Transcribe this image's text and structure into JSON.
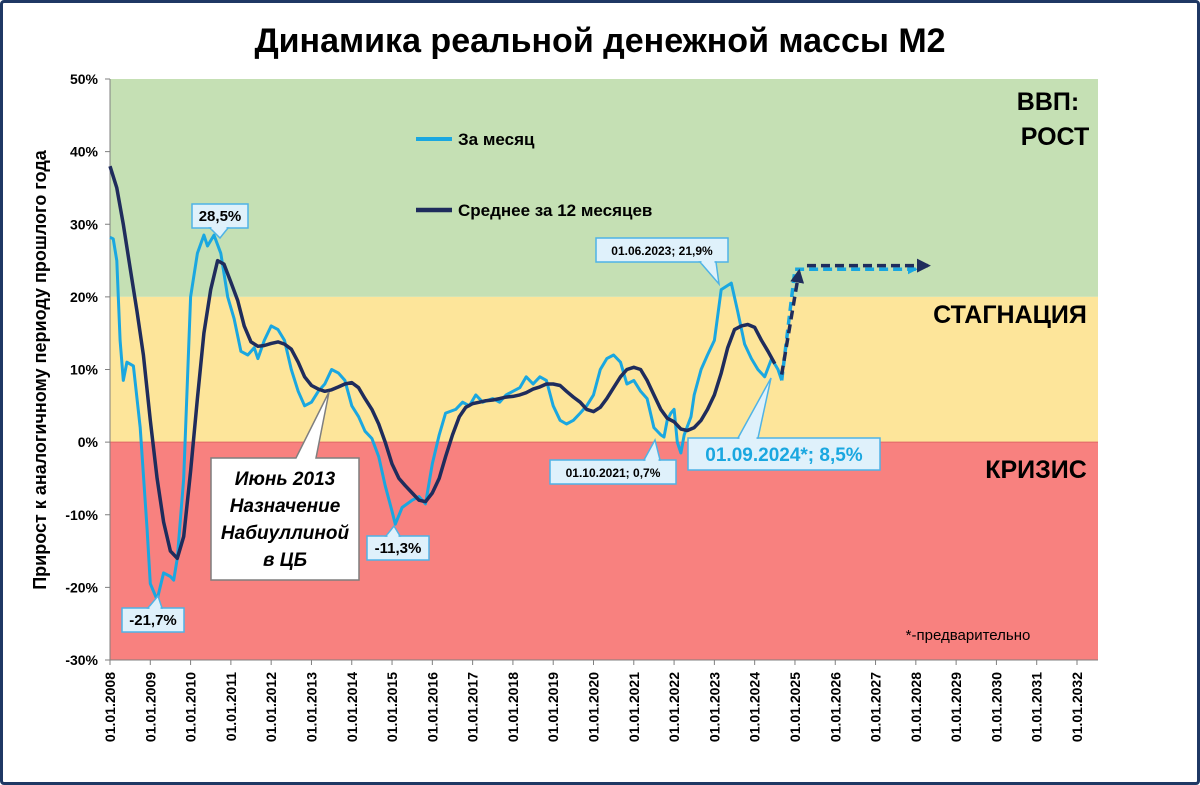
{
  "chart_data": {
    "type": "line",
    "title": "Динамика реальной денежной массы М2",
    "ylabel": "Прирост к аналогичному периоду прошлого года",
    "ylim": [
      -30,
      50
    ],
    "yticks": [
      "50%",
      "40%",
      "30%",
      "20%",
      "10%",
      "0%",
      "-10%",
      "-20%",
      "-30%"
    ],
    "x_categories": [
      "01.01.2008",
      "01.01.2009",
      "01.01.2010",
      "01.01.2011",
      "01.01.2012",
      "01.01.2013",
      "01.01.2014",
      "01.01.2015",
      "01.01.2016",
      "01.01.2017",
      "01.01.2018",
      "01.01.2019",
      "01.01.2020",
      "01.01.2021",
      "01.01.2022",
      "01.01.2023",
      "01.01.2024",
      "01.01.2025",
      "01.01.2026",
      "01.01.2027",
      "01.01.2028",
      "01.01.2029",
      "01.01.2030",
      "01.01.2031",
      "01.01.2032"
    ],
    "zones": [
      {
        "label_lines": [
          "ВВП:",
          "РОСТ"
        ],
        "from": 20,
        "to": 50,
        "color": "#c5e0b4"
      },
      {
        "label_lines": [
          "СТАГНАЦИЯ"
        ],
        "from": 0,
        "to": 20,
        "color": "#fde59a"
      },
      {
        "label_lines": [
          "КРИЗИС"
        ],
        "from": -30,
        "to": 0,
        "color": "#f8817f"
      }
    ],
    "legend_placement": "top-center",
    "series": [
      {
        "name": "За месяц",
        "color": "#1aa7e0",
        "points": [
          [
            2008.0,
            28.2
          ],
          [
            2008.08,
            28.0
          ],
          [
            2008.17,
            25.0
          ],
          [
            2008.25,
            14.0
          ],
          [
            2008.33,
            8.5
          ],
          [
            2008.42,
            11.0
          ],
          [
            2008.58,
            10.5
          ],
          [
            2008.75,
            2.0
          ],
          [
            2008.92,
            -12.0
          ],
          [
            2009.0,
            -19.5
          ],
          [
            2009.17,
            -21.7
          ],
          [
            2009.33,
            -18.0
          ],
          [
            2009.5,
            -18.5
          ],
          [
            2009.58,
            -19.0
          ],
          [
            2009.67,
            -16.0
          ],
          [
            2009.83,
            -5.0
          ],
          [
            2010.0,
            20.0
          ],
          [
            2010.17,
            26.0
          ],
          [
            2010.33,
            28.5
          ],
          [
            2010.42,
            27.0
          ],
          [
            2010.58,
            28.5
          ],
          [
            2010.75,
            26.0
          ],
          [
            2010.92,
            20.0
          ],
          [
            2011.08,
            17.0
          ],
          [
            2011.25,
            12.5
          ],
          [
            2011.42,
            12.0
          ],
          [
            2011.58,
            13.0
          ],
          [
            2011.67,
            11.5
          ],
          [
            2011.83,
            14.0
          ],
          [
            2012.0,
            16.0
          ],
          [
            2012.17,
            15.5
          ],
          [
            2012.33,
            14.0
          ],
          [
            2012.5,
            10.0
          ],
          [
            2012.67,
            7.0
          ],
          [
            2012.83,
            5.0
          ],
          [
            2013.0,
            5.5
          ],
          [
            2013.17,
            7.0
          ],
          [
            2013.33,
            8.0
          ],
          [
            2013.5,
            10.0
          ],
          [
            2013.67,
            9.5
          ],
          [
            2013.83,
            8.5
          ],
          [
            2014.0,
            5.0
          ],
          [
            2014.17,
            3.5
          ],
          [
            2014.33,
            1.5
          ],
          [
            2014.5,
            0.5
          ],
          [
            2014.67,
            -2.0
          ],
          [
            2014.83,
            -6.0
          ],
          [
            2015.0,
            -9.5
          ],
          [
            2015.08,
            -11.3
          ],
          [
            2015.25,
            -9.0
          ],
          [
            2015.5,
            -8.0
          ],
          [
            2015.67,
            -7.5
          ],
          [
            2015.83,
            -8.5
          ],
          [
            2016.0,
            -3.0
          ],
          [
            2016.17,
            1.0
          ],
          [
            2016.33,
            4.0
          ],
          [
            2016.58,
            4.5
          ],
          [
            2016.75,
            5.5
          ],
          [
            2016.92,
            5.0
          ],
          [
            2017.08,
            6.5
          ],
          [
            2017.25,
            5.5
          ],
          [
            2017.5,
            6.0
          ],
          [
            2017.67,
            5.5
          ],
          [
            2017.83,
            6.5
          ],
          [
            2018.0,
            7.0
          ],
          [
            2018.17,
            7.5
          ],
          [
            2018.33,
            9.0
          ],
          [
            2018.5,
            8.0
          ],
          [
            2018.67,
            9.0
          ],
          [
            2018.83,
            8.5
          ],
          [
            2019.0,
            5.0
          ],
          [
            2019.17,
            3.0
          ],
          [
            2019.33,
            2.5
          ],
          [
            2019.5,
            3.0
          ],
          [
            2019.67,
            4.0
          ],
          [
            2019.83,
            5.0
          ],
          [
            2020.0,
            6.5
          ],
          [
            2020.17,
            10.0
          ],
          [
            2020.33,
            11.5
          ],
          [
            2020.5,
            12.0
          ],
          [
            2020.67,
            11.0
          ],
          [
            2020.83,
            8.0
          ],
          [
            2021.0,
            8.5
          ],
          [
            2021.17,
            7.0
          ],
          [
            2021.33,
            6.0
          ],
          [
            2021.5,
            2.0
          ],
          [
            2021.67,
            1.0
          ],
          [
            2021.75,
            0.7
          ],
          [
            2021.83,
            3.0
          ],
          [
            2021.92,
            4.0
          ],
          [
            2022.0,
            4.5
          ],
          [
            2022.08,
            0.0
          ],
          [
            2022.17,
            -1.5
          ],
          [
            2022.25,
            1.0
          ],
          [
            2022.42,
            3.5
          ],
          [
            2022.5,
            6.5
          ],
          [
            2022.67,
            10.0
          ],
          [
            2022.83,
            12.0
          ],
          [
            2023.0,
            14.0
          ],
          [
            2023.17,
            21.0
          ],
          [
            2023.42,
            21.9
          ],
          [
            2023.58,
            18.0
          ],
          [
            2023.75,
            13.5
          ],
          [
            2023.92,
            11.5
          ],
          [
            2024.08,
            10.0
          ],
          [
            2024.25,
            9.0
          ],
          [
            2024.42,
            11.5
          ],
          [
            2024.58,
            10.0
          ],
          [
            2024.67,
            8.5
          ]
        ]
      },
      {
        "name": "Среднее за 12 месяцев",
        "color": "#1f2c5c",
        "points": [
          [
            2008.0,
            38.0
          ],
          [
            2008.17,
            35.0
          ],
          [
            2008.33,
            30.0
          ],
          [
            2008.5,
            24.0
          ],
          [
            2008.67,
            18.0
          ],
          [
            2008.83,
            12.0
          ],
          [
            2009.0,
            3.0
          ],
          [
            2009.17,
            -5.0
          ],
          [
            2009.33,
            -11.0
          ],
          [
            2009.5,
            -15.0
          ],
          [
            2009.67,
            -16.0
          ],
          [
            2009.83,
            -13.0
          ],
          [
            2010.0,
            -4.0
          ],
          [
            2010.17,
            6.0
          ],
          [
            2010.33,
            15.0
          ],
          [
            2010.5,
            21.0
          ],
          [
            2010.67,
            25.0
          ],
          [
            2010.83,
            24.5
          ],
          [
            2011.0,
            22.0
          ],
          [
            2011.17,
            19.5
          ],
          [
            2011.33,
            16.0
          ],
          [
            2011.5,
            13.8
          ],
          [
            2011.67,
            13.2
          ],
          [
            2011.83,
            13.3
          ],
          [
            2012.0,
            13.6
          ],
          [
            2012.17,
            13.8
          ],
          [
            2012.33,
            13.5
          ],
          [
            2012.5,
            12.8
          ],
          [
            2012.67,
            11.0
          ],
          [
            2012.83,
            9.0
          ],
          [
            2013.0,
            7.8
          ],
          [
            2013.17,
            7.3
          ],
          [
            2013.33,
            7.0
          ],
          [
            2013.5,
            7.2
          ],
          [
            2013.67,
            7.6
          ],
          [
            2013.83,
            8.0
          ],
          [
            2014.0,
            8.2
          ],
          [
            2014.17,
            7.5
          ],
          [
            2014.33,
            6.0
          ],
          [
            2014.5,
            4.5
          ],
          [
            2014.67,
            2.5
          ],
          [
            2014.83,
            0.0
          ],
          [
            2015.0,
            -3.0
          ],
          [
            2015.17,
            -5.0
          ],
          [
            2015.33,
            -6.0
          ],
          [
            2015.5,
            -7.0
          ],
          [
            2015.67,
            -8.0
          ],
          [
            2015.83,
            -8.2
          ],
          [
            2016.0,
            -7.0
          ],
          [
            2016.17,
            -5.0
          ],
          [
            2016.33,
            -2.0
          ],
          [
            2016.5,
            1.0
          ],
          [
            2016.67,
            3.5
          ],
          [
            2016.83,
            4.8
          ],
          [
            2017.0,
            5.3
          ],
          [
            2017.17,
            5.5
          ],
          [
            2017.33,
            5.7
          ],
          [
            2017.5,
            5.8
          ],
          [
            2017.67,
            6.0
          ],
          [
            2017.83,
            6.2
          ],
          [
            2018.0,
            6.3
          ],
          [
            2018.17,
            6.5
          ],
          [
            2018.33,
            6.8
          ],
          [
            2018.5,
            7.3
          ],
          [
            2018.67,
            7.6
          ],
          [
            2018.83,
            8.0
          ],
          [
            2019.0,
            8.0
          ],
          [
            2019.17,
            7.8
          ],
          [
            2019.33,
            7.0
          ],
          [
            2019.5,
            6.2
          ],
          [
            2019.67,
            5.5
          ],
          [
            2019.83,
            4.5
          ],
          [
            2020.0,
            4.2
          ],
          [
            2020.17,
            4.8
          ],
          [
            2020.33,
            6.0
          ],
          [
            2020.5,
            7.5
          ],
          [
            2020.67,
            9.0
          ],
          [
            2020.83,
            10.0
          ],
          [
            2021.0,
            10.3
          ],
          [
            2021.17,
            10.0
          ],
          [
            2021.33,
            8.5
          ],
          [
            2021.5,
            6.5
          ],
          [
            2021.67,
            4.5
          ],
          [
            2021.83,
            3.3
          ],
          [
            2022.0,
            2.8
          ],
          [
            2022.17,
            1.8
          ],
          [
            2022.33,
            1.6
          ],
          [
            2022.5,
            2.0
          ],
          [
            2022.67,
            3.0
          ],
          [
            2022.83,
            4.5
          ],
          [
            2023.0,
            6.5
          ],
          [
            2023.17,
            9.5
          ],
          [
            2023.33,
            13.0
          ],
          [
            2023.5,
            15.5
          ],
          [
            2023.67,
            16.0
          ],
          [
            2023.83,
            16.2
          ],
          [
            2024.0,
            15.8
          ],
          [
            2024.17,
            14.0
          ],
          [
            2024.33,
            12.5
          ],
          [
            2024.5,
            10.8
          ]
        ]
      }
    ],
    "forecast": [
      {
        "series": "За месяц",
        "color": "#1aa7e0",
        "points": [
          [
            2024.67,
            8.5
          ],
          [
            2025.0,
            23.8
          ],
          [
            2028.0,
            23.8
          ]
        ]
      },
      {
        "series": "Среднее за 12 месяцев",
        "color": "#1f2c5c",
        "points": [
          [
            2024.67,
            9.3
          ],
          [
            2025.1,
            24.3
          ],
          [
            2028.3,
            24.3
          ]
        ]
      }
    ],
    "annotations": [
      {
        "text_lines": [
          "28,5%"
        ],
        "x": 2010.5,
        "y": 28.5,
        "style": "small-box"
      },
      {
        "text_lines": [
          "-21,7%"
        ],
        "x": 2009.17,
        "y": -21.7,
        "style": "small-box"
      },
      {
        "text_lines": [
          "-11,3%"
        ],
        "x": 2015.08,
        "y": -11.3,
        "style": "small-box"
      },
      {
        "text_lines": [
          "01.06.2023; 21,9%"
        ],
        "x": 2023.42,
        "y": 21.9,
        "style": "small-box"
      },
      {
        "text_lines": [
          "01.10.2021; 0,7%"
        ],
        "x": 2021.75,
        "y": 0.7,
        "style": "small-box"
      },
      {
        "text_lines": [
          "01.09.2024*; 8,5%"
        ],
        "x": 2024.67,
        "y": 8.5,
        "style": "big-box"
      },
      {
        "text_lines": [
          "Июнь 2013",
          "Назначение",
          "Набиуллиной",
          "в ЦБ"
        ],
        "x": 2013.42,
        "y": 7.0,
        "style": "callout"
      }
    ],
    "note": "*-предварительно"
  }
}
